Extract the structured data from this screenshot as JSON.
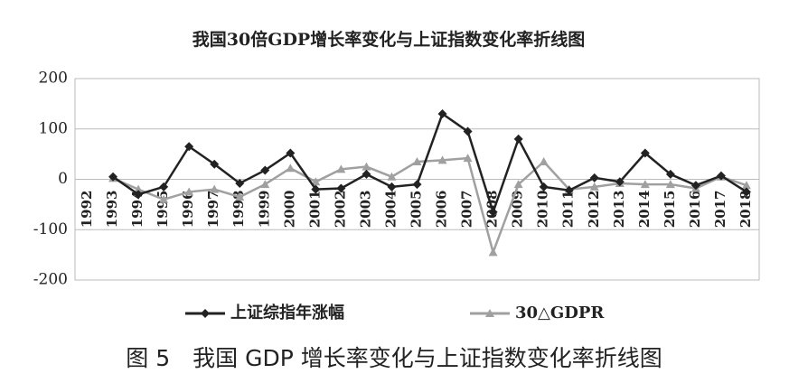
{
  "chart_data": {
    "type": "line",
    "title": "我国30倍GDP增长率变化与上证指数变化率折线图",
    "caption": "图 5　我国 GDP 增长率变化与上证指数变化率折线图",
    "categories": [
      "1992",
      "1993",
      "1994",
      "1995",
      "1996",
      "1997",
      "1998",
      "1999",
      "2000",
      "2001",
      "2002",
      "2003",
      "2004",
      "2005",
      "2006",
      "2007",
      "2008",
      "2009",
      "2010",
      "2011",
      "2012",
      "2013",
      "2014",
      "2015",
      "2016",
      "2017",
      "2018"
    ],
    "series": [
      {
        "name": "上证综指年涨幅",
        "color": "#222222",
        "marker": "diamond",
        "values": [
          null,
          5,
          -30,
          -15,
          65,
          30,
          -8,
          18,
          52,
          -20,
          -18,
          10,
          -15,
          -10,
          130,
          95,
          -65,
          80,
          -15,
          -22,
          3,
          -5,
          52,
          10,
          -12,
          7,
          -25
        ]
      },
      {
        "name": "30△GDPR",
        "color": "#a0a0a0",
        "marker": "triangle",
        "values": [
          null,
          2,
          -20,
          -40,
          -25,
          -20,
          -35,
          -10,
          22,
          -5,
          20,
          25,
          5,
          35,
          38,
          42,
          -145,
          -10,
          35,
          -20,
          -15,
          -8,
          -10,
          -10,
          -18,
          5,
          -12
        ]
      }
    ],
    "ylim": [
      -200,
      200
    ],
    "yticks": [
      -200,
      -100,
      0,
      100,
      200
    ],
    "grid": true
  }
}
